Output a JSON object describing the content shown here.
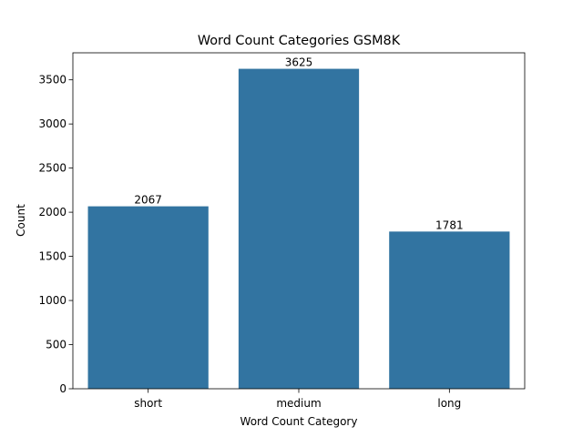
{
  "chart_data": {
    "type": "bar",
    "title": "Word Count Categories GSM8K",
    "xlabel": "Word Count Category",
    "ylabel": "Count",
    "categories": [
      "short",
      "medium",
      "long"
    ],
    "values": [
      2067,
      3625,
      1781
    ],
    "value_labels": [
      "2067",
      "3625",
      "1781"
    ],
    "ylim": [
      0,
      3806.25
    ],
    "yticks": [
      0,
      500,
      1000,
      1500,
      2000,
      2500,
      3000,
      3500
    ],
    "ytick_labels": [
      "0",
      "500",
      "1000",
      "1500",
      "2000",
      "2500",
      "3000",
      "3500"
    ],
    "grid": false,
    "legend": "none",
    "bar_color": "#3274a1"
  }
}
